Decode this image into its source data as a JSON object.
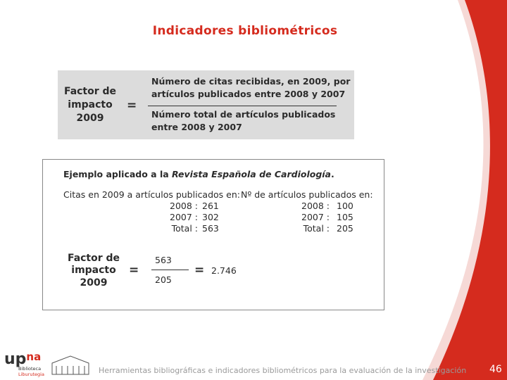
{
  "title": "Indicadores bibliométricos",
  "definition": {
    "lhs": [
      "Factor de",
      "impacto",
      "2009"
    ],
    "equals": "=",
    "numerator": [
      "Número de citas recibidas, en 2009, por",
      "artículos publicados entre 2008 y 2007"
    ],
    "denominator": [
      "Número total de artículos publicados",
      "entre 2008 y 2007"
    ]
  },
  "example": {
    "heading_prefix": "Ejemplo aplicado a la ",
    "heading_journal": "Revista Española de Cardiología",
    "heading_suffix": ".",
    "citations": {
      "label": "Citas en 2009 a artículos publicados en:",
      "rows": [
        {
          "label": "2008 :",
          "value": 261
        },
        {
          "label": "2007 :",
          "value": 302
        },
        {
          "label": "Total :",
          "value": 563
        }
      ]
    },
    "articles": {
      "label": "Nº de artículos publicados en:",
      "rows": [
        {
          "label": "2008 :",
          "value": 100
        },
        {
          "label": "2007 :",
          "value": 105
        },
        {
          "label": "Total :",
          "value": 205
        }
      ]
    },
    "result": {
      "lhs": [
        "Factor de",
        "impacto",
        "2009"
      ],
      "equals": "=",
      "numerator": 563,
      "denominator": 205,
      "equals_2": "=",
      "value": 2.746
    }
  },
  "footer": {
    "logo_up": "up",
    "logo_na": "na",
    "logo_line1": "Biblioteca",
    "logo_line2": "Liburutegia",
    "text": "Herramientas bibliográficas e indicadores bibliométricos para la evaluación de la investigación",
    "page": 46
  }
}
